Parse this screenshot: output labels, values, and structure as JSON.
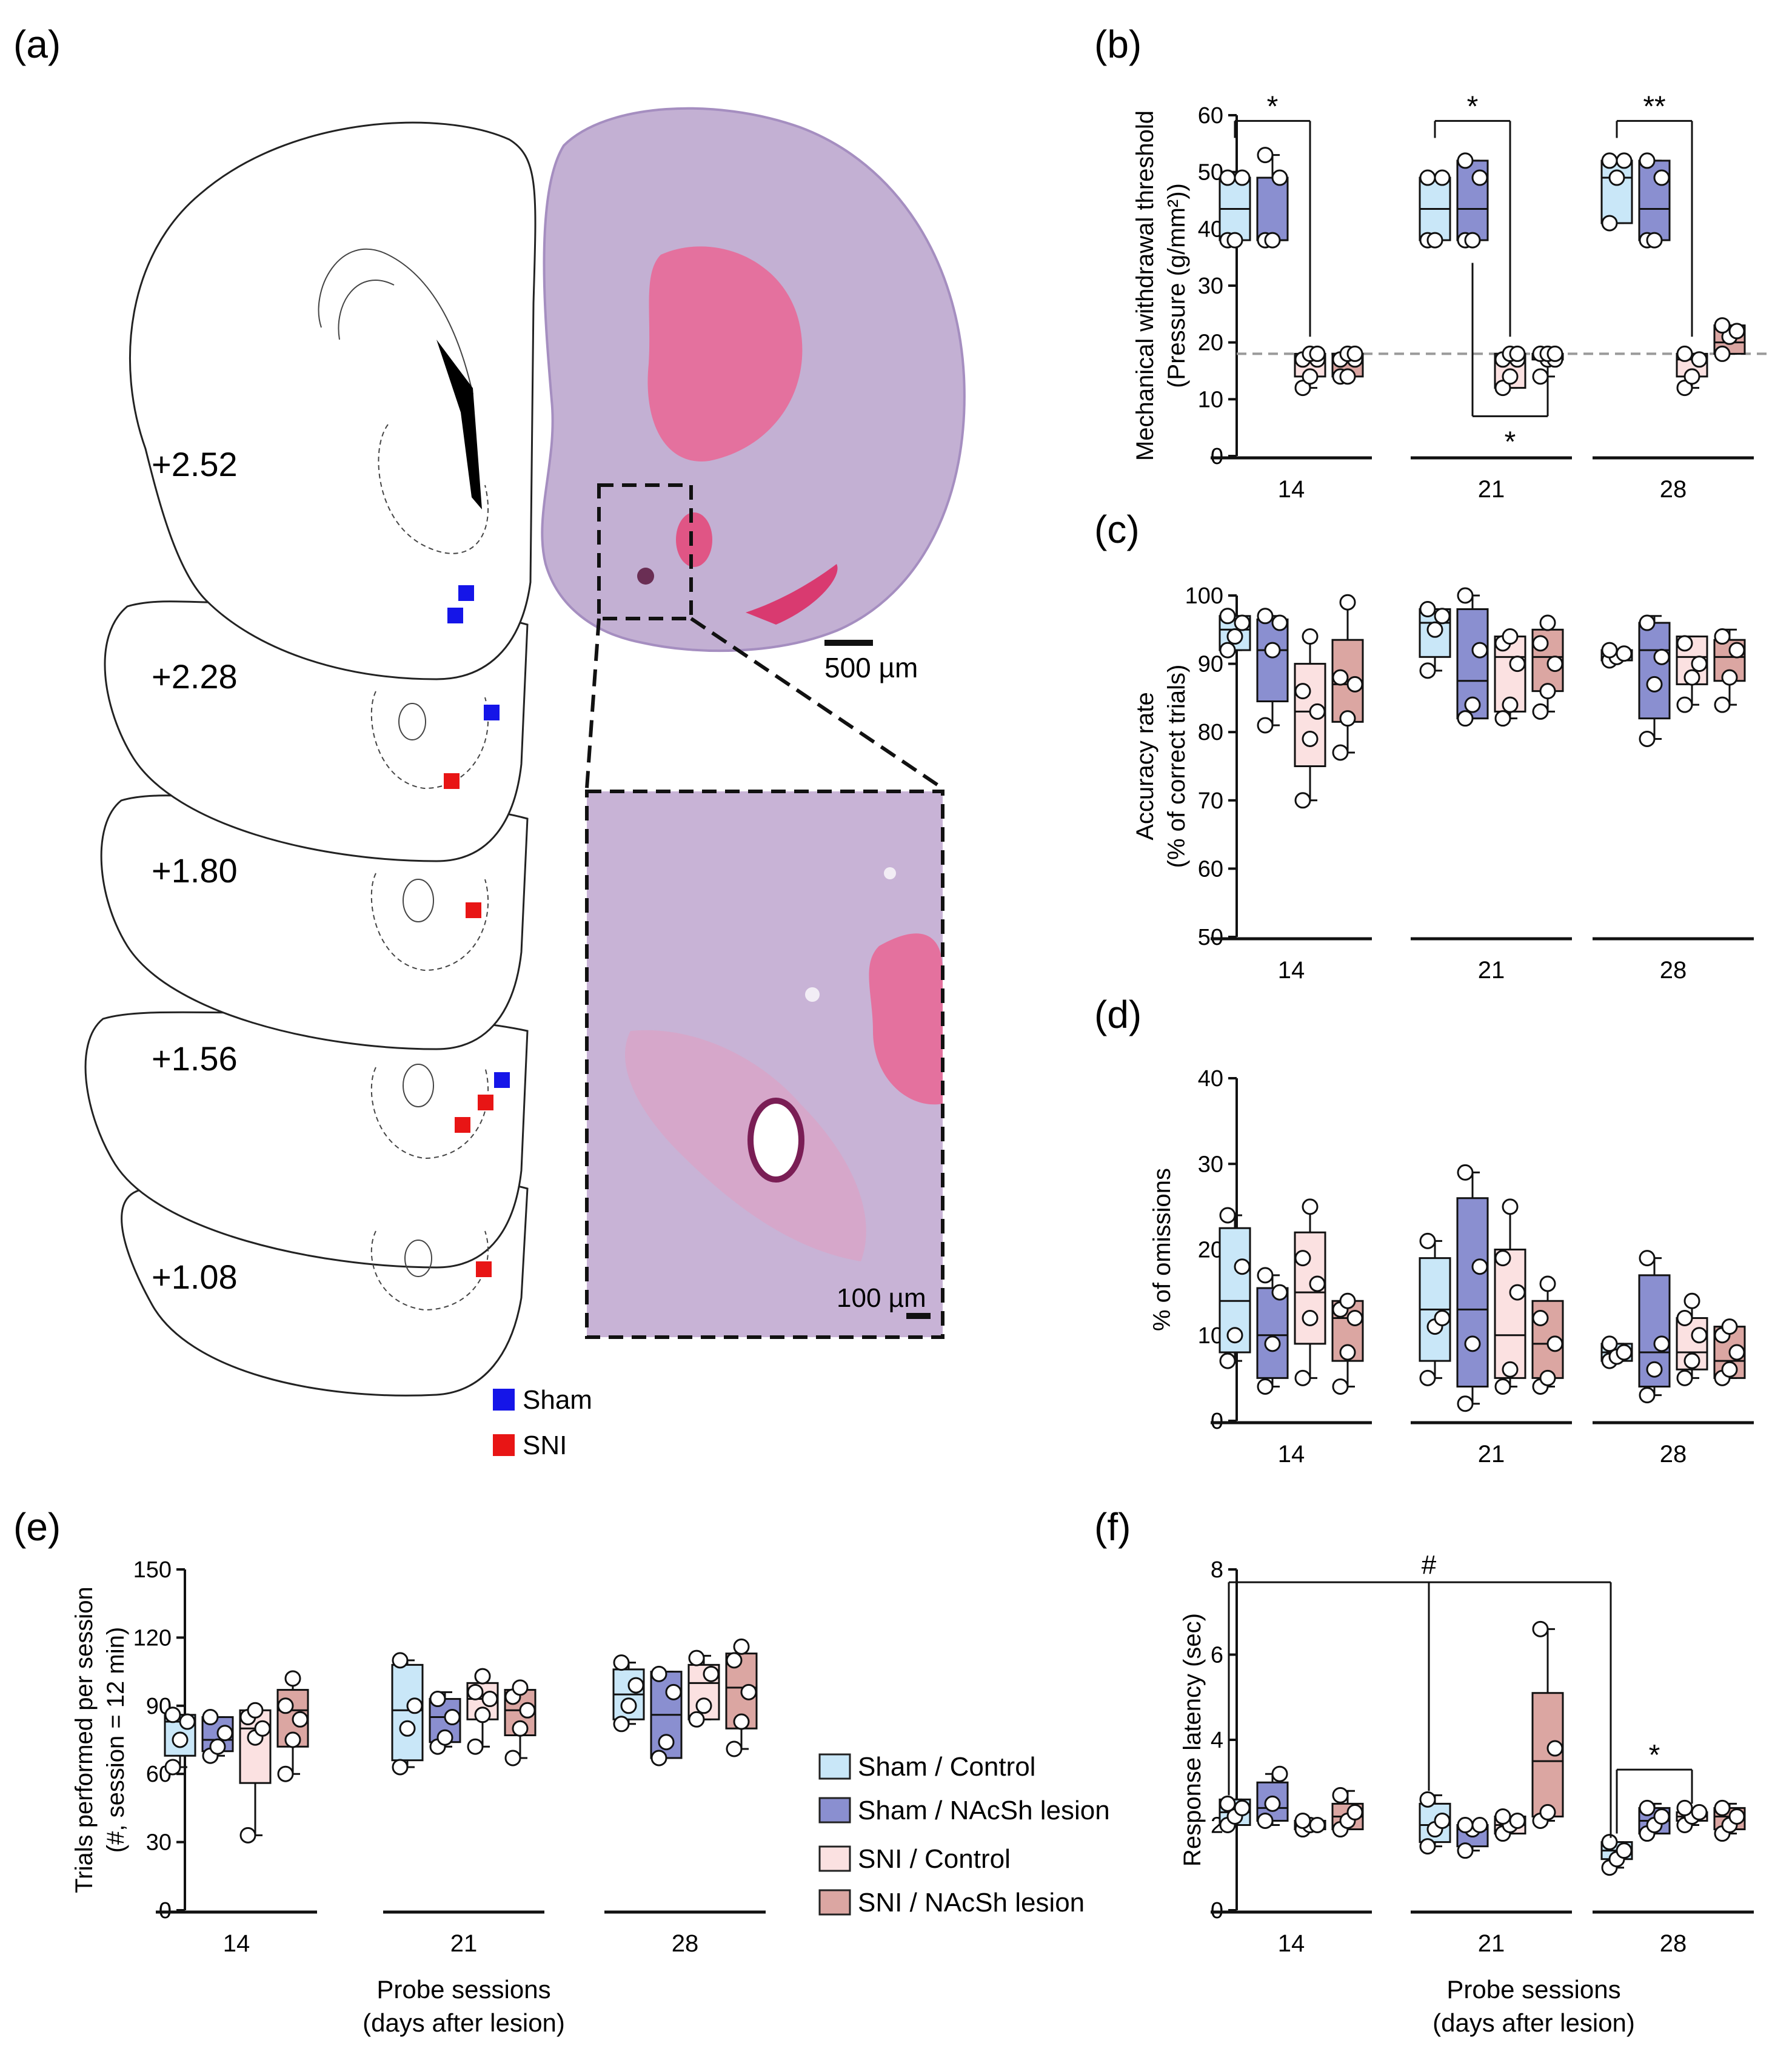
{
  "colors": {
    "sham_control": "#c9e7f8",
    "sham_lesion": "#8a8fd0",
    "sni_control": "#fbe1e1",
    "sni_lesion": "#dba6a2",
    "sham_marker": "#1515e8",
    "sni_marker": "#e81515",
    "ref_line": "#9a9a9a"
  },
  "panel_a": {
    "letter": "(a)",
    "section_labels": [
      "+2.52",
      "+2.28",
      "+1.80",
      "+1.56",
      "+1.08"
    ],
    "scale_bar_large": "500 µm",
    "scale_bar_small": "100 µm",
    "legend": [
      {
        "label": "Sham",
        "color": "#1515e8"
      },
      {
        "label": "SNI",
        "color": "#e81515"
      }
    ]
  },
  "groups": [
    "Sham / Control",
    "Sham / NAcSh lesion",
    "SNI / Control",
    "SNI / NAcSh lesion"
  ],
  "x_axis_title_line1": "Probe sessions",
  "x_axis_title_line2": "(days after lesion)",
  "chart_data": [
    {
      "id": "b",
      "letter": "(b)",
      "type": "box",
      "ylabel_line1": "Mechanical withdrawal threshold",
      "ylabel_line2": "(Pressure (g/mm²))",
      "ylim": [
        0,
        60
      ],
      "yticks": [
        0,
        10,
        20,
        30,
        40,
        50,
        60
      ],
      "categories": [
        "14",
        "21",
        "28"
      ],
      "reference_line": 18,
      "boxes": [
        [
          {
            "min": 38,
            "q1": 38,
            "med": 43.5,
            "q3": 49,
            "max": 49,
            "pts": [
              38,
              38,
              49,
              49
            ]
          },
          {
            "min": 38,
            "q1": 38,
            "med": 38,
            "q3": 49,
            "max": 53,
            "pts": [
              38,
              38,
              49,
              53
            ]
          },
          {
            "min": 12,
            "q1": 14,
            "med": 17,
            "q3": 18,
            "max": 18,
            "pts": [
              12,
              14,
              17,
              17,
              18,
              18
            ]
          },
          {
            "min": 14,
            "q1": 14,
            "med": 17,
            "q3": 18,
            "max": 18,
            "pts": [
              14,
              14,
              17,
              17,
              18,
              18
            ]
          }
        ],
        [
          {
            "min": 38,
            "q1": 38,
            "med": 43.5,
            "q3": 49,
            "max": 49,
            "pts": [
              38,
              38,
              49,
              49
            ]
          },
          {
            "min": 38,
            "q1": 38,
            "med": 43.5,
            "q3": 52,
            "max": 52,
            "pts": [
              38,
              38,
              49,
              52
            ]
          },
          {
            "min": 12,
            "q1": 12,
            "med": 17,
            "q3": 18,
            "max": 18,
            "pts": [
              12,
              14,
              17,
              17,
              18,
              18
            ]
          },
          {
            "min": 14,
            "q1": 17,
            "med": 17,
            "q3": 18,
            "max": 18,
            "pts": [
              14,
              17,
              17,
              18,
              18,
              18
            ]
          }
        ],
        [
          {
            "min": 41,
            "q1": 41,
            "med": 49,
            "q3": 52,
            "max": 52,
            "pts": [
              41,
              49,
              52,
              52
            ]
          },
          {
            "min": 38,
            "q1": 38,
            "med": 43.5,
            "q3": 52,
            "max": 52,
            "pts": [
              38,
              38,
              49,
              52
            ]
          },
          {
            "min": 12,
            "q1": 14,
            "med": 17,
            "q3": 18,
            "max": 18,
            "pts": [
              12,
              14,
              17,
              18
            ]
          },
          {
            "min": 18,
            "q1": 18,
            "med": 20,
            "q3": 23,
            "max": 23,
            "pts": [
              18,
              21,
              22,
              23
            ]
          }
        ]
      ],
      "annotations": [
        {
          "label": "*",
          "session": 0,
          "from": 0,
          "to": 2,
          "y": 59,
          "drop": [
            56,
            21
          ],
          "pos": "top"
        },
        {
          "label": "*",
          "session": 1,
          "from": 0,
          "to": 2,
          "y": 59,
          "drop": [
            56,
            21
          ],
          "pos": "top"
        },
        {
          "label": "**",
          "session": 2,
          "from": 0,
          "to": 2,
          "y": 59,
          "drop": [
            56,
            21
          ],
          "pos": "top"
        },
        {
          "label": "*",
          "session": 1,
          "from": 1,
          "to": 3,
          "y": 7,
          "drop": [
            34,
            14
          ],
          "pos": "bottom"
        }
      ]
    },
    {
      "id": "c",
      "letter": "(c)",
      "type": "box",
      "ylabel_line1": "Accuracy rate",
      "ylabel_line2": "(% of correct trials)",
      "ylim": [
        50,
        100
      ],
      "yticks": [
        50,
        60,
        70,
        80,
        90,
        100
      ],
      "categories": [
        "14",
        "21",
        "28"
      ],
      "boxes": [
        [
          {
            "min": 92,
            "q1": 92,
            "med": 95,
            "q3": 97,
            "max": 97,
            "pts": [
              92,
              94,
              96,
              97
            ]
          },
          {
            "min": 81,
            "q1": 84.5,
            "med": 92,
            "q3": 96.5,
            "max": 97,
            "pts": [
              81,
              92,
              96,
              97
            ]
          },
          {
            "min": 70,
            "q1": 75,
            "med": 83,
            "q3": 90,
            "max": 94,
            "pts": [
              70,
              79,
              83,
              86,
              94
            ]
          },
          {
            "min": 77,
            "q1": 81.5,
            "med": 87,
            "q3": 93.5,
            "max": 99,
            "pts": [
              77,
              82,
              87,
              88,
              99
            ]
          }
        ],
        [
          {
            "min": 89,
            "q1": 91,
            "med": 96,
            "q3": 98,
            "max": 98,
            "pts": [
              89,
              95,
              97,
              98
            ]
          },
          {
            "min": 82,
            "q1": 82,
            "med": 87.5,
            "q3": 98,
            "max": 100,
            "pts": [
              82,
              84,
              92,
              100
            ]
          },
          {
            "min": 82,
            "q1": 83,
            "med": 91,
            "q3": 94,
            "max": 94,
            "pts": [
              82,
              84,
              90,
              93,
              94
            ]
          },
          {
            "min": 83,
            "q1": 86,
            "med": 91,
            "q3": 95,
            "max": 96,
            "pts": [
              83,
              86,
              90,
              93,
              96
            ]
          }
        ],
        [
          {
            "min": 90.5,
            "q1": 90.5,
            "med": 91.5,
            "q3": 92,
            "max": 92,
            "pts": [
              90.5,
              91,
              91.5,
              92
            ]
          },
          {
            "min": 79,
            "q1": 82,
            "med": 92,
            "q3": 96,
            "max": 97,
            "pts": [
              79,
              87,
              91,
              96
            ]
          },
          {
            "min": 84,
            "q1": 87,
            "med": 91,
            "q3": 94,
            "max": 94,
            "pts": [
              84,
              88,
              90,
              93
            ]
          },
          {
            "min": 84,
            "q1": 87.5,
            "med": 91,
            "q3": 93.5,
            "max": 95,
            "pts": [
              84,
              88,
              92,
              94
            ]
          }
        ]
      ]
    },
    {
      "id": "d",
      "letter": "(d)",
      "type": "box",
      "ylabel_line1": "% of omissions",
      "ylim": [
        0,
        40
      ],
      "yticks": [
        0,
        10,
        20,
        30,
        40
      ],
      "categories": [
        "14",
        "21",
        "28"
      ],
      "boxes": [
        [
          {
            "min": 7,
            "q1": 8,
            "med": 14,
            "q3": 22.5,
            "max": 24,
            "pts": [
              7,
              10,
              18,
              24
            ]
          },
          {
            "min": 4,
            "q1": 5,
            "med": 10,
            "q3": 15.5,
            "max": 17,
            "pts": [
              4,
              9,
              15,
              17
            ]
          },
          {
            "min": 5,
            "q1": 9,
            "med": 15,
            "q3": 22,
            "max": 25,
            "pts": [
              5,
              12,
              16,
              19,
              25
            ]
          },
          {
            "min": 4,
            "q1": 7,
            "med": 12,
            "q3": 14,
            "max": 14,
            "pts": [
              4,
              8,
              12,
              13,
              14
            ]
          }
        ],
        [
          {
            "min": 5,
            "q1": 7,
            "med": 13,
            "q3": 19,
            "max": 21,
            "pts": [
              5,
              11,
              12,
              21
            ]
          },
          {
            "min": 2,
            "q1": 4,
            "med": 13,
            "q3": 26,
            "max": 29,
            "pts": [
              2,
              9,
              18,
              29
            ]
          },
          {
            "min": 4,
            "q1": 5,
            "med": 10,
            "q3": 20,
            "max": 25,
            "pts": [
              4,
              6,
              15,
              19,
              25
            ]
          },
          {
            "min": 4,
            "q1": 5,
            "med": 9,
            "q3": 14,
            "max": 16,
            "pts": [
              4,
              5,
              9,
              12,
              16
            ]
          }
        ],
        [
          {
            "min": 7,
            "q1": 7,
            "med": 8,
            "q3": 9,
            "max": 9,
            "pts": [
              7,
              7.5,
              8,
              9
            ]
          },
          {
            "min": 3,
            "q1": 4,
            "med": 8,
            "q3": 17,
            "max": 19,
            "pts": [
              3,
              6,
              9,
              19
            ]
          },
          {
            "min": 5,
            "q1": 6,
            "med": 8,
            "q3": 12,
            "max": 14,
            "pts": [
              5,
              7,
              10,
              12,
              14
            ]
          },
          {
            "min": 5,
            "q1": 5,
            "med": 7,
            "q3": 11,
            "max": 11,
            "pts": [
              5,
              6,
              8,
              10,
              11
            ]
          }
        ]
      ]
    },
    {
      "id": "e",
      "letter": "(e)",
      "type": "box",
      "ylabel_line1": "Trials performed per session",
      "ylabel_line2": "(#, session = 12 min)",
      "ylim": [
        0,
        150
      ],
      "yticks": [
        0,
        30,
        60,
        90,
        120,
        150
      ],
      "categories": [
        "14",
        "21",
        "28"
      ],
      "boxes": [
        [
          {
            "min": 63,
            "q1": 68,
            "med": 83,
            "q3": 86,
            "max": 86,
            "pts": [
              63,
              75,
              83,
              86
            ]
          },
          {
            "min": 68,
            "q1": 70,
            "med": 75,
            "q3": 85,
            "max": 85,
            "pts": [
              68,
              72,
              78,
              85
            ]
          },
          {
            "min": 33,
            "q1": 56,
            "med": 80,
            "q3": 88,
            "max": 88,
            "pts": [
              33,
              76,
              80,
              85,
              88
            ]
          },
          {
            "min": 60,
            "q1": 72,
            "med": 88,
            "q3": 97,
            "max": 102,
            "pts": [
              60,
              75,
              84,
              90,
              102
            ]
          }
        ],
        [
          {
            "min": 63,
            "q1": 66,
            "med": 88,
            "q3": 108,
            "max": 110,
            "pts": [
              63,
              80,
              90,
              110
            ]
          },
          {
            "min": 72,
            "q1": 74,
            "med": 85,
            "q3": 93,
            "max": 96,
            "pts": [
              72,
              76,
              85,
              93
            ]
          },
          {
            "min": 72,
            "q1": 84,
            "med": 93,
            "q3": 100,
            "max": 103,
            "pts": [
              72,
              86,
              93,
              96,
              103
            ]
          },
          {
            "min": 67,
            "q1": 77,
            "med": 88,
            "q3": 97,
            "max": 98,
            "pts": [
              67,
              80,
              88,
              94,
              98
            ]
          }
        ],
        [
          {
            "min": 82,
            "q1": 84,
            "med": 95,
            "q3": 106,
            "max": 109,
            "pts": [
              82,
              90,
              99,
              109
            ]
          },
          {
            "min": 67,
            "q1": 67,
            "med": 86,
            "q3": 105,
            "max": 105,
            "pts": [
              67,
              74,
              96,
              104
            ]
          },
          {
            "min": 84,
            "q1": 84,
            "med": 100,
            "q3": 108,
            "max": 112,
            "pts": [
              84,
              90,
              104,
              111
            ]
          },
          {
            "min": 71,
            "q1": 80,
            "med": 98,
            "q3": 113,
            "max": 117,
            "pts": [
              71,
              83,
              96,
              110,
              116
            ]
          }
        ]
      ]
    },
    {
      "id": "f",
      "letter": "(f)",
      "type": "box",
      "ylabel_line1": "Response latency (sec)",
      "ylim": [
        0,
        8
      ],
      "yticks": [
        0,
        2,
        4,
        6,
        8
      ],
      "categories": [
        "14",
        "21",
        "28"
      ],
      "boxes": [
        [
          {
            "min": 2,
            "q1": 2,
            "med": 2.3,
            "q3": 2.6,
            "max": 2.6,
            "pts": [
              2.0,
              2.2,
              2.4,
              2.5
            ]
          },
          {
            "min": 2,
            "q1": 2.1,
            "med": 2.4,
            "q3": 3.0,
            "max": 3.2,
            "pts": [
              2.1,
              2.5,
              3.2
            ]
          },
          {
            "min": 1.9,
            "q1": 1.9,
            "med": 2.0,
            "q3": 2.1,
            "max": 2.1,
            "pts": [
              1.9,
              2.0,
              2.0,
              2.1
            ]
          },
          {
            "min": 1.9,
            "q1": 1.9,
            "med": 2.2,
            "q3": 2.5,
            "max": 2.8,
            "pts": [
              1.9,
              2.1,
              2.3,
              2.7
            ]
          }
        ],
        [
          {
            "min": 1.5,
            "q1": 1.6,
            "med": 2.0,
            "q3": 2.5,
            "max": 2.7,
            "pts": [
              1.5,
              1.9,
              2.1,
              2.6
            ]
          },
          {
            "min": 1.4,
            "q1": 1.5,
            "med": 1.9,
            "q3": 2.0,
            "max": 2.0,
            "pts": [
              1.4,
              1.9,
              2.0,
              2.0
            ]
          },
          {
            "min": 1.8,
            "q1": 1.8,
            "med": 2.0,
            "q3": 2.2,
            "max": 2.2,
            "pts": [
              1.8,
              2.0,
              2.1,
              2.2
            ]
          },
          {
            "min": 2.1,
            "q1": 2.2,
            "med": 3.5,
            "q3": 5.1,
            "max": 6.6,
            "pts": [
              2.1,
              2.3,
              3.8,
              6.6
            ]
          }
        ],
        [
          {
            "min": 1.0,
            "q1": 1.2,
            "med": 1.4,
            "q3": 1.6,
            "max": 1.6,
            "pts": [
              1.0,
              1.2,
              1.4,
              1.6
            ]
          },
          {
            "min": 1.8,
            "q1": 1.8,
            "med": 2.1,
            "q3": 2.4,
            "max": 2.5,
            "pts": [
              1.8,
              2.0,
              2.2,
              2.4
            ]
          },
          {
            "min": 2.0,
            "q1": 2.1,
            "med": 2.2,
            "q3": 2.3,
            "max": 2.4,
            "pts": [
              2.0,
              2.2,
              2.3,
              2.4
            ]
          },
          {
            "min": 1.8,
            "q1": 1.9,
            "med": 2.2,
            "q3": 2.4,
            "max": 2.5,
            "pts": [
              1.8,
              2.0,
              2.2,
              2.4
            ]
          }
        ]
      ],
      "annotations": [
        {
          "label": "#",
          "type": "hash",
          "y": 7.7
        },
        {
          "label": "*",
          "session": 2,
          "from": 0,
          "to": 2,
          "y": 3.3,
          "drop": [
            1.8,
            2.5
          ],
          "pos": "top"
        }
      ]
    }
  ]
}
